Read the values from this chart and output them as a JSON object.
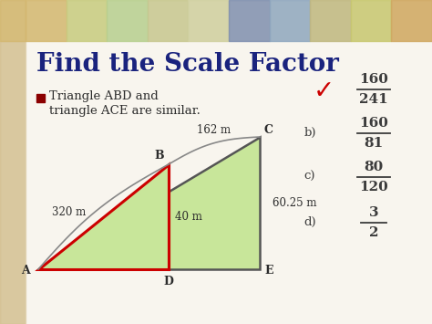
{
  "title": "Find the Scale Factor",
  "bg_color": "#f2ede0",
  "title_color": "#1a237e",
  "bullet_text_line1": "Triangle ABD and",
  "bullet_text_line2": "triangle ACE are similar.",
  "bullet_color": "#8b0000",
  "triangle_fill": "#c8e69a",
  "triangle_big_edge": "#555555",
  "triangle_small_edge": "#cc0000",
  "triangle_edge_width": 2.0,
  "dim_320": "320 m",
  "dim_162": "162 m",
  "dim_40": "40 m",
  "dim_60": "60.25 m",
  "answer_a_num": "160",
  "answer_a_den": "241",
  "answer_b_label": "b)",
  "answer_b_num": "160",
  "answer_b_den": "81",
  "answer_c_label": "c)",
  "answer_c_num": "80",
  "answer_c_den": "120",
  "answer_d_label": "d)",
  "answer_d_num": "3",
  "answer_d_den": "2",
  "check_color": "#cc0000",
  "answer_color": "#3c3c3c",
  "header_colors": [
    "#d4b870",
    "#c8cc80",
    "#b8d090",
    "#c8c890",
    "#d0d0a0",
    "#8090b0",
    "#90a8c0",
    "#c0b880",
    "#c8c870",
    "#d0a860"
  ]
}
